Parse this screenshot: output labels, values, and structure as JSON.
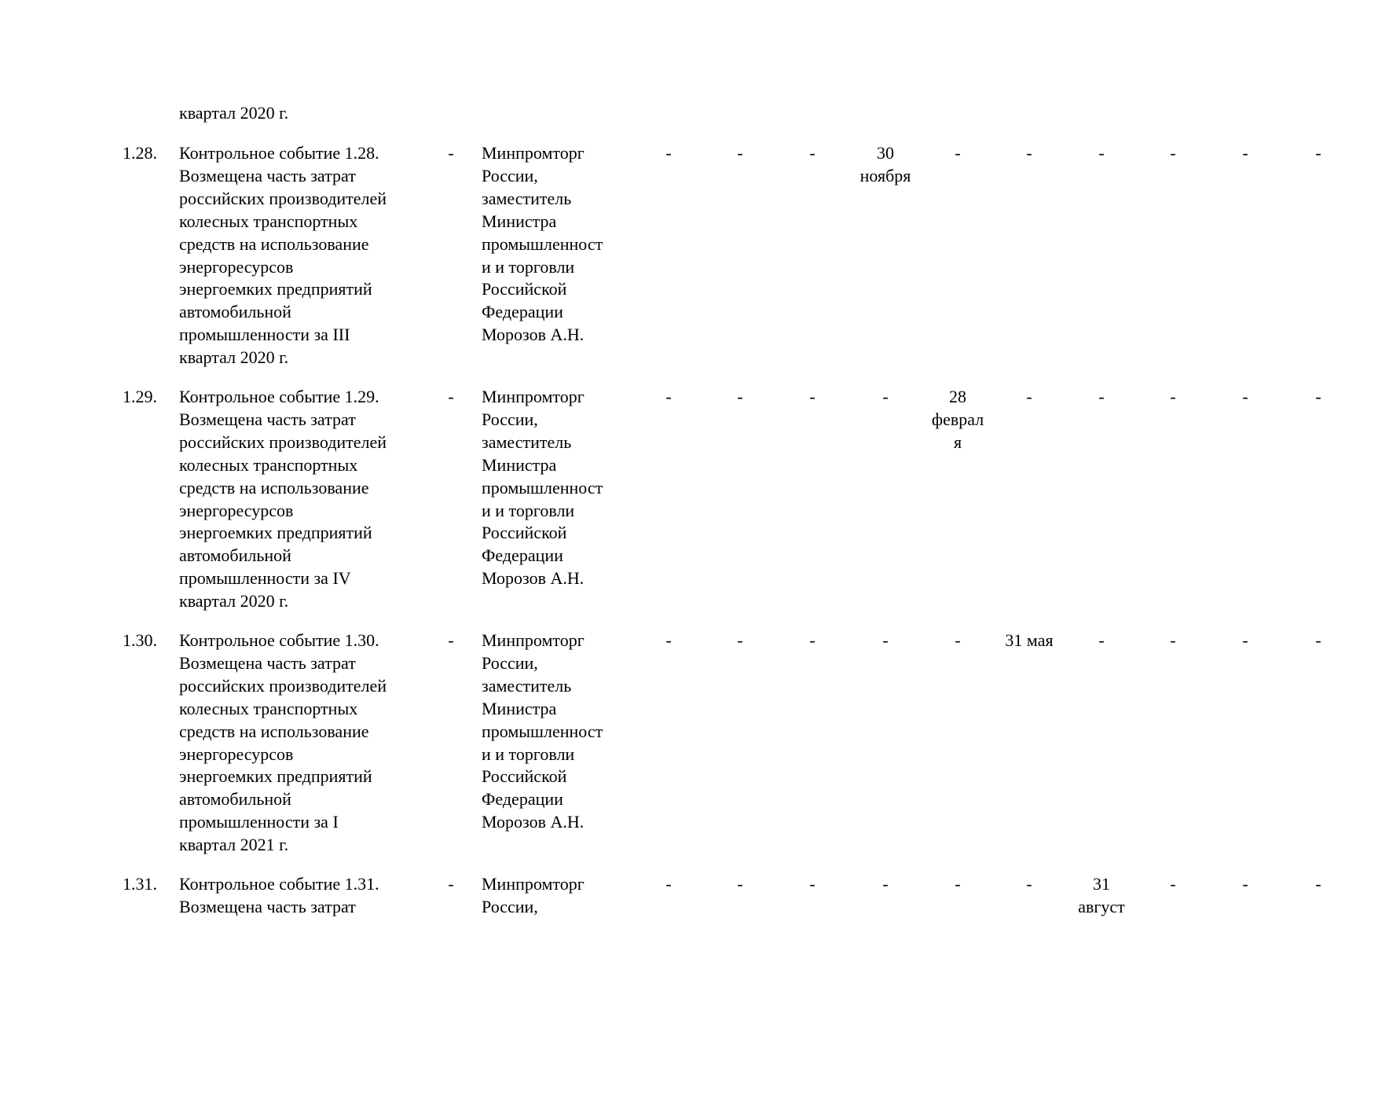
{
  "continuation": {
    "name": "квартал 2020 г."
  },
  "rows": [
    {
      "number": "1.28.",
      "name": "Контрольное событие 1.28.\nВозмещена часть затрат\nроссийских производителей\nколесных транспортных\nсредств на использование\nэнергоресурсов\nэнергоемких предприятий\nавтомобильной\nпромышленности за III\nквартал 2020 г.",
      "col3": "-",
      "responsible": "Минпромторг\nРоссии,\nзаместитель\nМинистра\nпромышленност\nи и торговли\nРоссийской\nФедерации\nМорозов А.Н.",
      "dates": [
        "-",
        "-",
        "-",
        "30\nноября",
        "-",
        "-",
        "-",
        "-",
        "-",
        "-"
      ]
    },
    {
      "number": "1.29.",
      "name": "Контрольное событие 1.29.\nВозмещена часть затрат\nроссийских производителей\nколесных транспортных\nсредств на использование\nэнергоресурсов\nэнергоемких предприятий\nавтомобильной\nпромышленности за IV\nквартал 2020 г.",
      "col3": "-",
      "responsible": "Минпромторг\nРоссии,\nзаместитель\nМинистра\nпромышленност\nи и торговли\nРоссийской\nФедерации\nМорозов А.Н.",
      "dates": [
        "-",
        "-",
        "-",
        "-",
        "28\nфеврал\nя",
        "-",
        "-",
        "-",
        "-",
        "-"
      ]
    },
    {
      "number": "1.30.",
      "name": "Контрольное событие 1.30.\nВозмещена часть затрат\nроссийских производителей\nколесных транспортных\nсредств на использование\nэнергоресурсов\nэнергоемких предприятий\nавтомобильной\nпромышленности за I\nквартал 2021 г.",
      "col3": "-",
      "responsible": "Минпромторг\nРоссии,\nзаместитель\nМинистра\nпромышленност\nи и торговли\nРоссийской\nФедерации\nМорозов А.Н.",
      "dates": [
        "-",
        "-",
        "-",
        "-",
        "-",
        "31 мая",
        "-",
        "-",
        "-",
        "-"
      ]
    },
    {
      "number": "1.31.",
      "name": "Контрольное событие 1.31.\nВозмещена часть затрат",
      "col3": "-",
      "responsible": "Минпромторг\nРоссии,",
      "dates": [
        "-",
        "-",
        "-",
        "-",
        "-",
        "-",
        "31\nавгуст",
        "-",
        "-",
        "-"
      ]
    }
  ]
}
